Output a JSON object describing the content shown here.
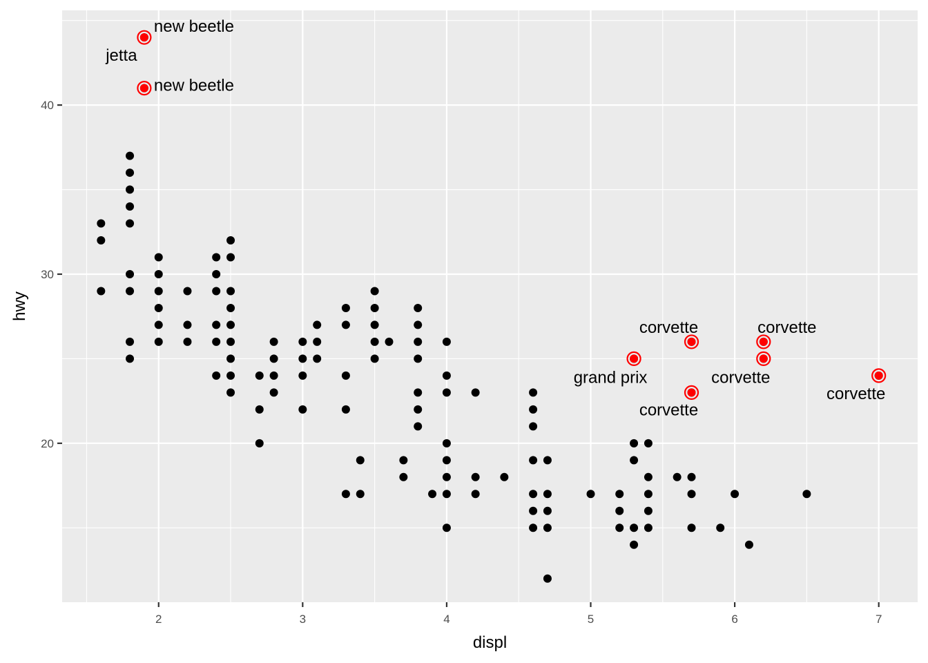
{
  "chart_data": {
    "type": "scatter",
    "title": "",
    "xlabel": "displ",
    "ylabel": "hwy",
    "xlim": [
      1.33,
      7.27
    ],
    "ylim": [
      10.6,
      45.6
    ],
    "xticks": [
      2,
      3,
      4,
      5,
      6,
      7
    ],
    "yticks": [
      20,
      30,
      40
    ],
    "grid": true,
    "colors": {
      "panel": "#ebebeb",
      "grid": "#ffffff",
      "point": "#000000",
      "highlight": "#ff0000"
    },
    "points": [
      {
        "x": 1.6,
        "y": 33
      },
      {
        "x": 1.6,
        "y": 32
      },
      {
        "x": 1.6,
        "y": 29
      },
      {
        "x": 1.8,
        "y": 37
      },
      {
        "x": 1.8,
        "y": 36
      },
      {
        "x": 1.8,
        "y": 35
      },
      {
        "x": 1.8,
        "y": 34
      },
      {
        "x": 1.8,
        "y": 33
      },
      {
        "x": 1.8,
        "y": 30
      },
      {
        "x": 1.8,
        "y": 29
      },
      {
        "x": 1.8,
        "y": 26
      },
      {
        "x": 1.8,
        "y": 25
      },
      {
        "x": 2.0,
        "y": 31
      },
      {
        "x": 2.0,
        "y": 30
      },
      {
        "x": 2.0,
        "y": 29
      },
      {
        "x": 2.0,
        "y": 28
      },
      {
        "x": 2.0,
        "y": 27
      },
      {
        "x": 2.0,
        "y": 26
      },
      {
        "x": 2.2,
        "y": 29
      },
      {
        "x": 2.2,
        "y": 27
      },
      {
        "x": 2.2,
        "y": 26
      },
      {
        "x": 2.4,
        "y": 31
      },
      {
        "x": 2.4,
        "y": 30
      },
      {
        "x": 2.4,
        "y": 29
      },
      {
        "x": 2.4,
        "y": 27
      },
      {
        "x": 2.4,
        "y": 26
      },
      {
        "x": 2.4,
        "y": 24
      },
      {
        "x": 2.5,
        "y": 32
      },
      {
        "x": 2.5,
        "y": 31
      },
      {
        "x": 2.5,
        "y": 29
      },
      {
        "x": 2.5,
        "y": 28
      },
      {
        "x": 2.5,
        "y": 27
      },
      {
        "x": 2.5,
        "y": 26
      },
      {
        "x": 2.5,
        "y": 25
      },
      {
        "x": 2.5,
        "y": 24
      },
      {
        "x": 2.5,
        "y": 23
      },
      {
        "x": 2.7,
        "y": 24
      },
      {
        "x": 2.7,
        "y": 22
      },
      {
        "x": 2.7,
        "y": 20
      },
      {
        "x": 2.8,
        "y": 26
      },
      {
        "x": 2.8,
        "y": 25
      },
      {
        "x": 2.8,
        "y": 24
      },
      {
        "x": 2.8,
        "y": 23
      },
      {
        "x": 3.0,
        "y": 26
      },
      {
        "x": 3.0,
        "y": 25
      },
      {
        "x": 3.0,
        "y": 24
      },
      {
        "x": 3.0,
        "y": 22
      },
      {
        "x": 3.1,
        "y": 27
      },
      {
        "x": 3.1,
        "y": 26
      },
      {
        "x": 3.1,
        "y": 25
      },
      {
        "x": 3.3,
        "y": 28
      },
      {
        "x": 3.3,
        "y": 27
      },
      {
        "x": 3.3,
        "y": 24
      },
      {
        "x": 3.3,
        "y": 22
      },
      {
        "x": 3.3,
        "y": 17
      },
      {
        "x": 3.4,
        "y": 19
      },
      {
        "x": 3.4,
        "y": 17
      },
      {
        "x": 3.5,
        "y": 29
      },
      {
        "x": 3.5,
        "y": 28
      },
      {
        "x": 3.5,
        "y": 27
      },
      {
        "x": 3.5,
        "y": 26
      },
      {
        "x": 3.5,
        "y": 25
      },
      {
        "x": 3.6,
        "y": 26
      },
      {
        "x": 3.7,
        "y": 19
      },
      {
        "x": 3.7,
        "y": 18
      },
      {
        "x": 3.8,
        "y": 28
      },
      {
        "x": 3.8,
        "y": 27
      },
      {
        "x": 3.8,
        "y": 26
      },
      {
        "x": 3.8,
        "y": 25
      },
      {
        "x": 3.8,
        "y": 23
      },
      {
        "x": 3.8,
        "y": 22
      },
      {
        "x": 3.8,
        "y": 21
      },
      {
        "x": 3.9,
        "y": 17
      },
      {
        "x": 4.0,
        "y": 26
      },
      {
        "x": 4.0,
        "y": 24
      },
      {
        "x": 4.0,
        "y": 23
      },
      {
        "x": 4.0,
        "y": 20
      },
      {
        "x": 4.0,
        "y": 19
      },
      {
        "x": 4.0,
        "y": 18
      },
      {
        "x": 4.0,
        "y": 17
      },
      {
        "x": 4.0,
        "y": 15
      },
      {
        "x": 4.2,
        "y": 23
      },
      {
        "x": 4.2,
        "y": 18
      },
      {
        "x": 4.2,
        "y": 17
      },
      {
        "x": 4.4,
        "y": 18
      },
      {
        "x": 4.6,
        "y": 23
      },
      {
        "x": 4.6,
        "y": 22
      },
      {
        "x": 4.6,
        "y": 21
      },
      {
        "x": 4.6,
        "y": 19
      },
      {
        "x": 4.6,
        "y": 17
      },
      {
        "x": 4.6,
        "y": 16
      },
      {
        "x": 4.6,
        "y": 15
      },
      {
        "x": 4.7,
        "y": 19
      },
      {
        "x": 4.7,
        "y": 17
      },
      {
        "x": 4.7,
        "y": 16
      },
      {
        "x": 4.7,
        "y": 15
      },
      {
        "x": 4.7,
        "y": 12
      },
      {
        "x": 5.0,
        "y": 17
      },
      {
        "x": 5.2,
        "y": 17
      },
      {
        "x": 5.2,
        "y": 16
      },
      {
        "x": 5.2,
        "y": 15
      },
      {
        "x": 5.3,
        "y": 20
      },
      {
        "x": 5.3,
        "y": 19
      },
      {
        "x": 5.3,
        "y": 15
      },
      {
        "x": 5.3,
        "y": 14
      },
      {
        "x": 5.4,
        "y": 20
      },
      {
        "x": 5.4,
        "y": 18
      },
      {
        "x": 5.4,
        "y": 17
      },
      {
        "x": 5.4,
        "y": 16
      },
      {
        "x": 5.4,
        "y": 15
      },
      {
        "x": 5.6,
        "y": 18
      },
      {
        "x": 5.7,
        "y": 18
      },
      {
        "x": 5.7,
        "y": 17
      },
      {
        "x": 5.7,
        "y": 15
      },
      {
        "x": 5.9,
        "y": 15
      },
      {
        "x": 6.0,
        "y": 17
      },
      {
        "x": 6.1,
        "y": 14
      },
      {
        "x": 6.5,
        "y": 17
      }
    ],
    "highlighted": [
      {
        "x": 1.9,
        "y": 44,
        "labels": [
          {
            "text": "new beetle",
            "anchor": "start",
            "dx": 14,
            "dy": -8
          },
          {
            "text": "jetta",
            "anchor": "middle",
            "dx": -33,
            "dy": 34
          }
        ]
      },
      {
        "x": 1.9,
        "y": 41,
        "labels": [
          {
            "text": "new beetle",
            "anchor": "start",
            "dx": 14,
            "dy": 4
          }
        ]
      },
      {
        "x": 5.3,
        "y": 25,
        "labels": [
          {
            "text": "grand prix",
            "anchor": "middle",
            "dx": -34,
            "dy": 35
          }
        ]
      },
      {
        "x": 5.7,
        "y": 26,
        "labels": [
          {
            "text": "corvette",
            "anchor": "middle",
            "dx": -33,
            "dy": -13
          }
        ]
      },
      {
        "x": 5.7,
        "y": 23,
        "labels": [
          {
            "text": "corvette",
            "anchor": "middle",
            "dx": -33,
            "dy": 33
          }
        ]
      },
      {
        "x": 6.2,
        "y": 26,
        "labels": [
          {
            "text": "corvette",
            "anchor": "middle",
            "dx": 34,
            "dy": -13
          }
        ]
      },
      {
        "x": 6.2,
        "y": 25,
        "labels": [
          {
            "text": "corvette",
            "anchor": "middle",
            "dx": -33,
            "dy": 35
          }
        ]
      },
      {
        "x": 7.0,
        "y": 24,
        "labels": [
          {
            "text": "corvette",
            "anchor": "middle",
            "dx": -33,
            "dy": 34
          }
        ]
      }
    ]
  }
}
